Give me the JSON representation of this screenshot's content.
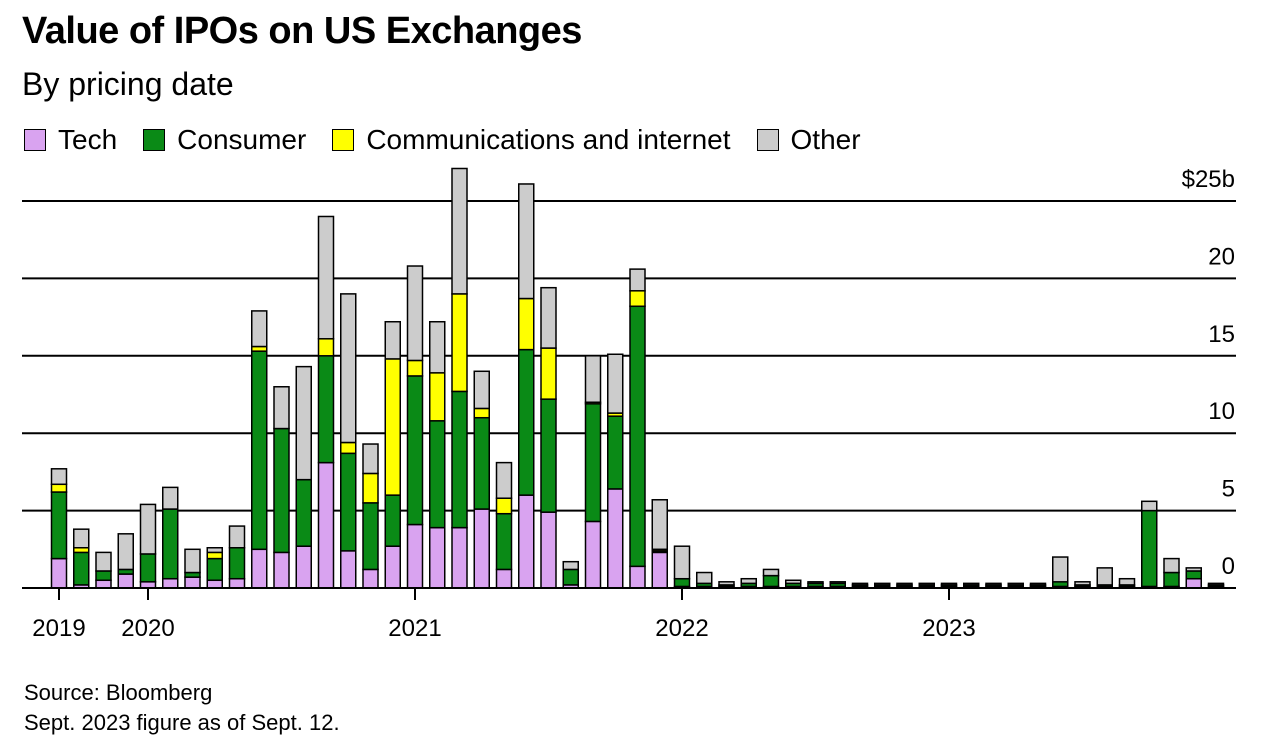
{
  "title": "Value of IPOs on US Exchanges",
  "subtitle": "By pricing date",
  "legend": [
    {
      "label": "Tech",
      "color": "#d9a3f0"
    },
    {
      "label": "Consumer",
      "color": "#0a8a16"
    },
    {
      "label": "Communications and internet",
      "color": "#ffff00"
    },
    {
      "label": "Other",
      "color": "#cccccc"
    }
  ],
  "source": "Source: Bloomberg",
  "note": "Sept. 2023 figure as of Sept. 12.",
  "chart_data": {
    "type": "bar",
    "stacked": true,
    "unit": "$ billions",
    "ylim": [
      0,
      25
    ],
    "y_ticks": [
      {
        "value": 25,
        "label": "$25b"
      },
      {
        "value": 20,
        "label": "20"
      },
      {
        "value": 15,
        "label": "15"
      },
      {
        "value": 10,
        "label": "10"
      },
      {
        "value": 5,
        "label": "5"
      },
      {
        "value": 0,
        "label": "0"
      }
    ],
    "x_ticks": [
      "2019",
      "2020",
      "2021",
      "2022",
      "2023"
    ],
    "x_tick_month_index": [
      0,
      4,
      16,
      28,
      40
    ],
    "first_month": "2019-12",
    "months": [
      "2019-12",
      "2020-01",
      "2020-02",
      "2020-03",
      "2020-04",
      "2020-05",
      "2020-06",
      "2020-07",
      "2020-08",
      "2020-09",
      "2020-10",
      "2020-11",
      "2020-12",
      "2021-01",
      "2021-02",
      "2021-03",
      "2021-04",
      "2021-05",
      "2021-06",
      "2021-07",
      "2021-08",
      "2021-09",
      "2021-10",
      "2021-11",
      "2021-12",
      "2022-01",
      "2022-02",
      "2022-03",
      "2022-04",
      "2022-05",
      "2022-06",
      "2022-07",
      "2022-08",
      "2022-09",
      "2022-10",
      "2022-11",
      "2022-12",
      "2023-01",
      "2023-02",
      "2023-03",
      "2023-04",
      "2023-05",
      "2023-06",
      "2023-07",
      "2023-08",
      "2023-09",
      "2023-10",
      "2023-11",
      "2023-12",
      "2024-01",
      "2024-02",
      "2024-03",
      "2024-04",
      "2024-05"
    ],
    "series": [
      {
        "name": "Tech",
        "color": "#d9a3f0",
        "values": [
          1.9,
          0.2,
          0.5,
          0.9,
          0.4,
          0.6,
          0.7,
          0.5,
          0.6,
          2.5,
          2.3,
          2.7,
          8.1,
          2.4,
          1.2,
          2.7,
          4.1,
          3.9,
          3.9,
          5.1,
          1.2,
          6.0,
          4.9,
          0.2,
          4.3,
          6.4,
          1.4,
          2.3,
          0.1,
          0.1,
          0.1,
          0.1,
          0.1,
          0.1,
          0.1,
          0.1,
          0.1,
          0.1,
          0.1,
          0.1,
          0.1,
          0.1,
          0.1,
          0.1,
          0.1,
          0.1,
          0.1,
          0.1,
          0.1,
          0.1,
          0.1,
          0.6,
          0.1,
          0
        ]
      },
      {
        "name": "Consumer",
        "color": "#0a8a16",
        "values": [
          4.3,
          2.1,
          0.6,
          0.3,
          1.8,
          4.5,
          0.3,
          1.4,
          2.0,
          12.8,
          8.0,
          4.3,
          6.9,
          6.3,
          4.3,
          3.3,
          9.6,
          6.9,
          8.8,
          5.9,
          3.6,
          9.4,
          7.3,
          1.0,
          7.6,
          4.7,
          16.8,
          0.1,
          0.5,
          0.2,
          0.1,
          0.2,
          0.7,
          0.2,
          0.2,
          0.2,
          0.1,
          0.1,
          0.1,
          0.1,
          0.1,
          0.1,
          0.1,
          0.1,
          0.1,
          0.3,
          0.1,
          0.1,
          0.1,
          4.9,
          0.9,
          0.5,
          0.1,
          0
        ]
      },
      {
        "name": "Communications and internet",
        "color": "#ffff00",
        "values": [
          0.5,
          0.3,
          0,
          0,
          0,
          0,
          0,
          0.4,
          0,
          0.3,
          0,
          0,
          1.1,
          0.7,
          1.9,
          8.8,
          1.0,
          3.1,
          6.3,
          0.6,
          1.0,
          3.3,
          3.3,
          0,
          0.1,
          0.2,
          1.0,
          0.1,
          0,
          0,
          0,
          0,
          0,
          0,
          0,
          0,
          0,
          0,
          0,
          0,
          0,
          0,
          0,
          0,
          0,
          0,
          0,
          0,
          0,
          0,
          0,
          0,
          0,
          0
        ]
      },
      {
        "name": "Other",
        "color": "#cccccc",
        "values": [
          1.0,
          1.2,
          1.2,
          2.3,
          3.2,
          1.4,
          1.5,
          0.3,
          1.4,
          2.3,
          2.7,
          7.3,
          7.9,
          9.6,
          1.9,
          2.4,
          6.1,
          3.3,
          8.1,
          2.4,
          2.3,
          7.4,
          3.9,
          0.5,
          3.0,
          3.8,
          1.4,
          3.2,
          2.1,
          0.7,
          0.2,
          0.3,
          0.4,
          0.2,
          0.1,
          0.1,
          0.1,
          0.1,
          0.1,
          0.1,
          0.1,
          0.1,
          0.1,
          0.1,
          0.1,
          1.6,
          0.2,
          1.1,
          0.4,
          0.6,
          0.9,
          0.2,
          0.1,
          0
        ]
      }
    ]
  }
}
